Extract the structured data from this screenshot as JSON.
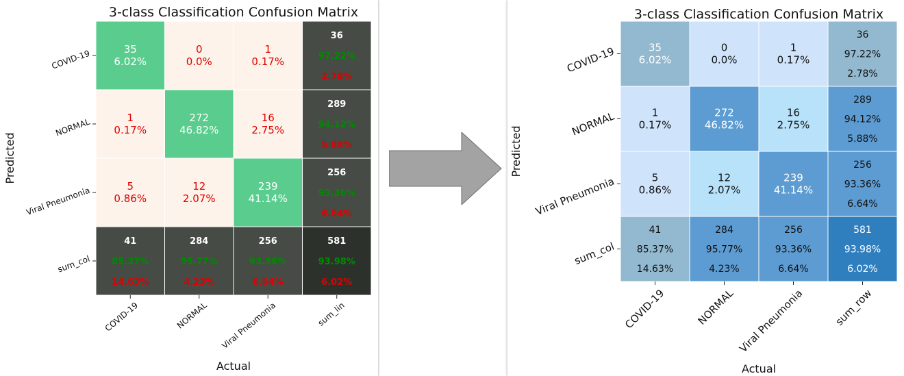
{
  "chart_data": [
    {
      "type": "heatmap",
      "title": "3-class Classification Confusion Matrix",
      "xlabel": "Actual",
      "ylabel": "Predicted",
      "x_tick_labels": [
        "COVID-19",
        "NORMAL",
        "Viral Pneumonia",
        "sum_lin"
      ],
      "y_tick_labels": [
        "COVID-19",
        "NORMAL",
        "Viral Pneumonia",
        "sum_col"
      ],
      "matrix": [
        [
          35,
          0,
          1,
          36
        ],
        [
          1,
          272,
          16,
          289
        ],
        [
          5,
          12,
          239,
          256
        ],
        [
          41,
          284,
          256,
          581
        ]
      ],
      "cell_text": [
        [
          [
            "35",
            "6.02%"
          ],
          [
            "0",
            "0.0%"
          ],
          [
            "1",
            "0.17%"
          ],
          [
            "36",
            "97.22%",
            "2.78%"
          ]
        ],
        [
          [
            "1",
            "0.17%"
          ],
          [
            "272",
            "46.82%"
          ],
          [
            "16",
            "2.75%"
          ],
          [
            "289",
            "94.12%",
            "5.88%"
          ]
        ],
        [
          [
            "5",
            "0.86%"
          ],
          [
            "12",
            "2.07%"
          ],
          [
            "239",
            "41.14%"
          ],
          [
            "256",
            "93.36%",
            "6.64%"
          ]
        ],
        [
          [
            "41",
            "85.37%",
            "14.63%"
          ],
          [
            "284",
            "95.77%",
            "4.23%"
          ],
          [
            "256",
            "93.36%",
            "6.64%"
          ],
          [
            "581",
            "93.98%",
            "6.02%"
          ]
        ]
      ],
      "colors": {
        "diagonal": "#59cc8e",
        "off_diagonal": "#fdf3ea",
        "totals": "#464b45",
        "grand_total": "#2c322b",
        "count_text_light": "#ffffff",
        "count_text_red": "#e00000",
        "correct_text": "#008a00",
        "error_text": "#e00000"
      }
    },
    {
      "type": "heatmap",
      "title": "3-class Classification Confusion Matrix",
      "xlabel": "Actual",
      "ylabel": "Predicted",
      "x_tick_labels": [
        "COVID-19",
        "NORMAL",
        "Viral Pneumonia",
        "sum_row"
      ],
      "y_tick_labels": [
        "COVID-19",
        "NORMAL",
        "Viral Pneumonia",
        "sum_col"
      ],
      "matrix": [
        [
          35,
          0,
          1,
          36
        ],
        [
          1,
          272,
          16,
          289
        ],
        [
          5,
          12,
          239,
          256
        ],
        [
          41,
          284,
          256,
          581
        ]
      ],
      "cell_text": [
        [
          [
            "35",
            "6.02%"
          ],
          [
            "0",
            "0.0%"
          ],
          [
            "1",
            "0.17%"
          ],
          [
            "36",
            "97.22%",
            "2.78%"
          ]
        ],
        [
          [
            "1",
            "0.17%"
          ],
          [
            "272",
            "46.82%"
          ],
          [
            "16",
            "2.75%"
          ],
          [
            "289",
            "94.12%",
            "5.88%"
          ]
        ],
        [
          [
            "5",
            "0.86%"
          ],
          [
            "12",
            "2.07%"
          ],
          [
            "239",
            "41.14%"
          ],
          [
            "256",
            "93.36%",
            "6.64%"
          ]
        ],
        [
          [
            "41",
            "85.37%",
            "14.63%"
          ],
          [
            "284",
            "95.77%",
            "4.23%"
          ],
          [
            "256",
            "93.36%",
            "6.64%"
          ],
          [
            "581",
            "93.98%",
            "6.02%"
          ]
        ]
      ],
      "colors": {
        "low": "#cfe3fb",
        "light_cyan": "#b8e2fa",
        "mid": "#92b9d0",
        "high": "#5d9cd2",
        "max": "#2f7fbf",
        "text_light": "#ffffff",
        "text_dark": "#111111"
      }
    }
  ]
}
